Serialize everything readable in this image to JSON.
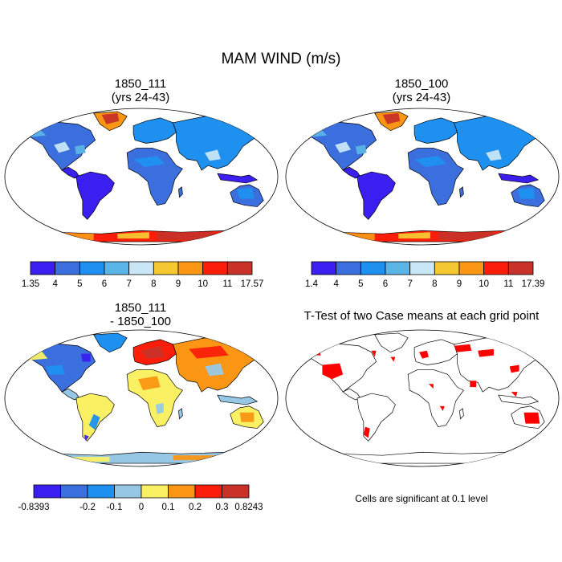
{
  "figure": {
    "title": "MAM WIND (m/s)"
  },
  "panels": [
    {
      "id": "p1",
      "title_line1": "1850_111",
      "title_line2": "(yrs 24-43)",
      "kind": "wind",
      "colorbar": {
        "labels": [
          "1.35",
          "4",
          "5",
          "6",
          "7",
          "8",
          "9",
          "10",
          "11",
          "17.57"
        ],
        "colors": [
          "#3b1ef0",
          "#3b6fdd",
          "#1e90f0",
          "#5ab4e6",
          "#c8e6f5",
          "#f5c832",
          "#fa9614",
          "#fa1e0a",
          "#c83228"
        ]
      }
    },
    {
      "id": "p2",
      "title_line1": "1850_100",
      "title_line2": "(yrs 24-43)",
      "kind": "wind",
      "colorbar": {
        "labels": [
          "1.4",
          "4",
          "5",
          "6",
          "7",
          "8",
          "9",
          "10",
          "11",
          "17.39"
        ],
        "colors": [
          "#3b1ef0",
          "#3b6fdd",
          "#1e90f0",
          "#5ab4e6",
          "#c8e6f5",
          "#f5c832",
          "#fa9614",
          "#fa1e0a",
          "#c83228"
        ]
      }
    },
    {
      "id": "p3",
      "title_line1": "1850_111",
      "title_line2": "- 1850_100",
      "kind": "diff",
      "colorbar": {
        "labels": [
          "-0.8393",
          "",
          "-0.2",
          "-0.1",
          "0",
          "0.1",
          "0.2",
          "0.3",
          "0.8243"
        ],
        "colors": [
          "#3b1ef0",
          "#3b6fdd",
          "#1e90f0",
          "#96c8e6",
          "#faf064",
          "#fa9614",
          "#fa1e0a",
          "#c83228"
        ]
      }
    },
    {
      "id": "p4",
      "title_line1": "T-Test of two Case means at each grid point",
      "kind": "ttest",
      "note": "Cells are significant at 0.1 level",
      "sig_color": "#ff0000"
    }
  ]
}
